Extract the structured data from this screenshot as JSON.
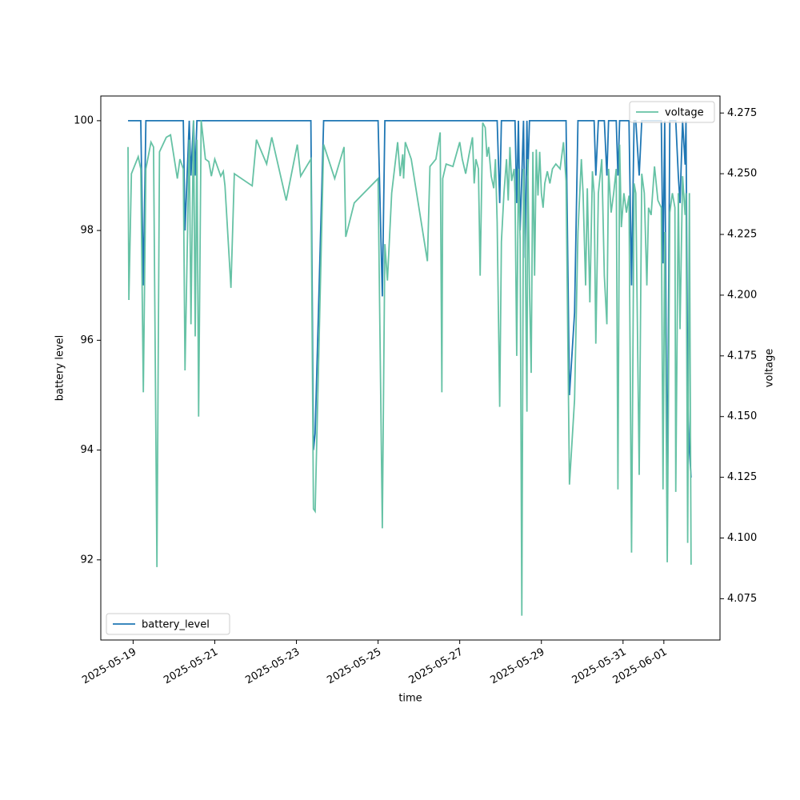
{
  "chart_data": {
    "type": "line",
    "xlabel": "time",
    "ylabel": "battery level",
    "y2label": "voltage",
    "x": [
      "2025-05-18T21:00",
      "2025-05-18T21:30",
      "2025-05-18T23:00",
      "2025-05-19T03:00",
      "2025-05-19T04:30",
      "2025-05-19T06:00",
      "2025-05-19T07:30",
      "2025-05-19T10:30",
      "2025-05-19T12:00",
      "2025-05-19T14:00",
      "2025-05-19T15:30",
      "2025-05-19T19:30",
      "2025-05-19T22:00",
      "2025-05-20T02:00",
      "2025-05-20T03:30",
      "2025-05-20T05:30",
      "2025-05-20T06:30",
      "2025-05-20T09:00",
      "2025-05-20T10:00",
      "2025-05-20T11:30",
      "2025-05-20T12:30",
      "2025-05-20T13:30",
      "2025-05-20T14:30",
      "2025-05-20T16:00",
      "2025-05-20T18:30",
      "2025-05-20T20:30",
      "2025-05-20T22:00",
      "2025-05-21T00:00",
      "2025-05-21T03:30",
      "2025-05-21T05:00",
      "2025-05-21T06:00",
      "2025-05-21T09:30",
      "2025-05-21T11:30",
      "2025-05-21T22:00",
      "2025-05-22T00:30",
      "2025-05-22T06:30",
      "2025-05-22T09:30",
      "2025-05-22T18:00",
      "2025-05-23T00:30",
      "2025-05-23T02:30",
      "2025-05-23T08:30",
      "2025-05-23T10:00",
      "2025-05-23T11:00",
      "2025-05-23T16:00",
      "2025-05-23T22:30",
      "2025-05-24T04:00",
      "2025-05-24T05:00",
      "2025-05-24T10:00",
      "2025-05-25T00:00",
      "2025-05-25T02:30",
      "2025-05-25T04:00",
      "2025-05-25T05:30",
      "2025-05-25T08:00",
      "2025-05-25T11:30",
      "2025-05-25T13:00",
      "2025-05-25T14:30",
      "2025-05-25T15:00",
      "2025-05-25T16:00",
      "2025-05-25T19:30",
      "2025-05-26T05:00",
      "2025-05-26T06:30",
      "2025-05-26T10:00",
      "2025-05-26T12:30",
      "2025-05-26T13:30",
      "2025-05-26T14:00",
      "2025-05-26T16:00",
      "2025-05-26T20:00",
      "2025-05-27T00:00",
      "2025-05-27T01:30",
      "2025-05-27T03:30",
      "2025-05-27T05:30",
      "2025-05-27T07:30",
      "2025-05-27T08:30",
      "2025-05-27T09:30",
      "2025-05-27T11:00",
      "2025-05-27T12:00",
      "2025-05-27T13:30",
      "2025-05-27T15:00",
      "2025-05-27T16:00",
      "2025-05-27T17:00",
      "2025-05-27T18:30",
      "2025-05-27T20:00",
      "2025-05-27T21:00",
      "2025-05-27T22:00",
      "2025-05-27T23:30",
      "2025-05-28T00:30",
      "2025-05-28T02:00",
      "2025-05-28T03:30",
      "2025-05-28T04:30",
      "2025-05-28T05:30",
      "2025-05-28T06:30",
      "2025-05-28T08:00",
      "2025-05-28T08:30",
      "2025-05-28T09:30",
      "2025-05-28T10:30",
      "2025-05-28T11:30",
      "2025-05-28T12:30",
      "2025-05-28T13:30",
      "2025-05-28T14:30",
      "2025-05-28T15:30",
      "2025-05-28T16:00",
      "2025-05-28T17:00",
      "2025-05-28T18:00",
      "2025-05-28T19:00",
      "2025-05-28T20:00",
      "2025-05-28T21:00",
      "2025-05-28T22:00",
      "2025-05-28T23:00",
      "2025-05-29T00:00",
      "2025-05-29T01:00",
      "2025-05-29T02:00",
      "2025-05-29T03:30",
      "2025-05-29T05:00",
      "2025-05-29T06:30",
      "2025-05-29T08:30",
      "2025-05-29T11:00",
      "2025-05-29T13:00",
      "2025-05-29T14:30",
      "2025-05-29T16:30",
      "2025-05-29T19:30",
      "2025-05-29T21:30",
      "2025-05-29T23:30",
      "2025-05-30T00:30",
      "2025-05-30T02:00",
      "2025-05-30T03:00",
      "2025-05-30T04:30",
      "2025-05-30T06:00",
      "2025-05-30T07:00",
      "2025-05-30T08:00",
      "2025-05-30T09:30",
      "2025-05-30T11:30",
      "2025-05-30T13:00",
      "2025-05-30T14:30",
      "2025-05-30T15:30",
      "2025-05-30T17:00",
      "2025-05-30T18:30",
      "2025-05-30T20:00",
      "2025-05-30T21:00",
      "2025-05-30T22:00",
      "2025-05-30T23:00",
      "2025-05-31T00:30",
      "2025-05-31T02:00",
      "2025-05-31T03:30",
      "2025-05-31T05:00",
      "2025-05-31T06:30",
      "2025-05-31T07:30",
      "2025-05-31T09:30",
      "2025-05-31T11:00",
      "2025-05-31T12:30",
      "2025-05-31T14:00",
      "2025-05-31T15:00",
      "2025-05-31T16:30",
      "2025-05-31T18:30",
      "2025-05-31T20:30",
      "2025-05-31T22:30",
      "2025-05-31T23:30",
      "2025-06-01T00:30",
      "2025-06-01T02:00",
      "2025-06-01T03:30",
      "2025-06-01T05:00",
      "2025-06-01T06:30",
      "2025-06-01T07:00",
      "2025-06-01T08:30",
      "2025-06-01T09:30",
      "2025-06-01T11:00",
      "2025-06-01T12:30",
      "2025-06-01T13:00",
      "2025-06-01T14:00",
      "2025-06-01T15:00",
      "2025-06-01T16:00"
    ],
    "series": [
      {
        "name": "battery_level",
        "color": "#1f77b4",
        "axis": "y",
        "legend_loc": "lower left",
        "values": [
          100,
          100,
          100,
          100,
          100,
          97,
          100,
          100,
          100,
          100,
          100,
          100,
          100,
          100,
          100,
          100,
          98,
          100,
          99,
          100,
          99,
          100,
          100,
          100,
          100,
          100,
          100,
          100,
          100,
          100,
          100,
          100,
          100,
          100,
          100,
          100,
          100,
          100,
          100,
          100,
          100,
          94,
          94.3,
          100,
          100,
          100,
          100,
          100,
          100,
          96.8,
          100,
          100,
          100,
          100,
          100,
          100,
          100,
          100,
          100,
          100,
          100,
          100,
          100,
          100,
          100,
          100,
          100,
          100,
          100,
          100,
          100,
          100,
          100,
          100,
          100,
          100,
          100,
          100,
          100,
          100,
          100,
          100,
          100,
          100,
          98.5,
          100,
          100,
          100,
          100,
          100,
          100,
          100,
          100,
          98.5,
          100,
          98,
          99,
          100,
          97.5,
          100,
          99,
          100,
          100,
          100,
          100,
          100,
          100,
          100,
          100,
          100,
          100,
          100,
          100,
          100,
          100,
          100,
          100,
          100,
          95,
          96.5,
          100,
          100,
          100,
          100,
          100,
          100,
          100,
          100,
          99,
          100,
          100,
          100,
          99,
          100,
          100,
          100,
          100,
          99,
          100,
          100,
          100,
          100,
          100,
          97,
          100,
          100,
          99,
          100,
          100,
          100,
          100,
          100,
          100,
          100,
          100,
          97.4,
          100,
          93,
          100,
          100,
          100,
          100,
          99,
          98.5,
          100,
          99.2,
          100,
          95,
          94,
          93.5
        ]
      },
      {
        "name": "voltage",
        "color": "#66c2a5",
        "axis": "y2",
        "legend_loc": "upper right",
        "values": [
          4.261,
          4.198,
          4.25,
          4.257,
          4.252,
          4.16,
          4.252,
          4.263,
          4.261,
          4.088,
          4.259,
          4.265,
          4.266,
          4.248,
          4.256,
          4.252,
          4.169,
          4.264,
          4.188,
          4.272,
          4.183,
          4.264,
          4.15,
          4.272,
          4.256,
          4.255,
          4.249,
          4.256,
          4.249,
          4.251,
          4.245,
          4.203,
          4.25,
          4.245,
          4.264,
          4.254,
          4.265,
          4.239,
          4.262,
          4.249,
          4.256,
          4.112,
          4.111,
          4.262,
          4.248,
          4.261,
          4.224,
          4.238,
          4.248,
          4.104,
          4.221,
          4.206,
          4.242,
          4.263,
          4.249,
          4.258,
          4.248,
          4.263,
          4.256,
          4.214,
          4.253,
          4.256,
          4.267,
          4.16,
          4.248,
          4.254,
          4.253,
          4.263,
          4.256,
          4.25,
          4.258,
          4.265,
          4.246,
          4.256,
          4.252,
          4.208,
          4.271,
          4.269,
          4.257,
          4.261,
          4.249,
          4.244,
          4.256,
          4.23,
          4.154,
          4.222,
          4.242,
          4.256,
          4.239,
          4.261,
          4.247,
          4.252,
          4.242,
          4.175,
          4.252,
          4.223,
          4.068,
          4.252,
          4.223,
          4.152,
          4.256,
          4.203,
          4.168,
          4.259,
          4.208,
          4.26,
          4.241,
          4.259,
          4.242,
          4.236,
          4.246,
          4.251,
          4.246,
          4.252,
          4.254,
          4.252,
          4.263,
          4.247,
          4.122,
          4.157,
          4.226,
          4.256,
          4.242,
          4.204,
          4.244,
          4.197,
          4.251,
          4.242,
          4.18,
          4.242,
          4.256,
          4.208,
          4.188,
          4.252,
          4.234,
          4.242,
          4.252,
          4.12,
          4.262,
          4.228,
          4.242,
          4.234,
          4.241,
          4.094,
          4.246,
          4.242,
          4.126,
          4.25,
          4.242,
          4.204,
          4.236,
          4.233,
          4.253,
          4.239,
          4.236,
          4.12,
          4.226,
          4.09,
          4.234,
          4.242,
          4.236,
          4.119,
          4.242,
          4.186,
          4.249,
          4.233,
          4.242,
          4.098,
          4.242,
          4.089
        ]
      }
    ],
    "xlim": [
      "2025-05-18T05:00",
      "2025-06-02T09:00"
    ],
    "xticks": [
      "2025-05-19",
      "2025-05-21",
      "2025-05-23",
      "2025-05-25",
      "2025-05-27",
      "2025-05-29",
      "2025-05-31",
      "2025-06-01"
    ],
    "ylim": [
      90.54,
      100.45
    ],
    "yticks": [
      92,
      94,
      96,
      98,
      100
    ],
    "y2lim": [
      4.058,
      4.282
    ],
    "y2ticks": [
      4.075,
      {
        "value": 4.1,
        "label": "4.100"
      },
      4.125,
      {
        "value": 4.15,
        "label": "4.150"
      },
      4.175,
      {
        "value": 4.2,
        "label": "4.200"
      },
      4.225,
      {
        "value": 4.25,
        "label": "4.250"
      },
      4.275
    ]
  }
}
